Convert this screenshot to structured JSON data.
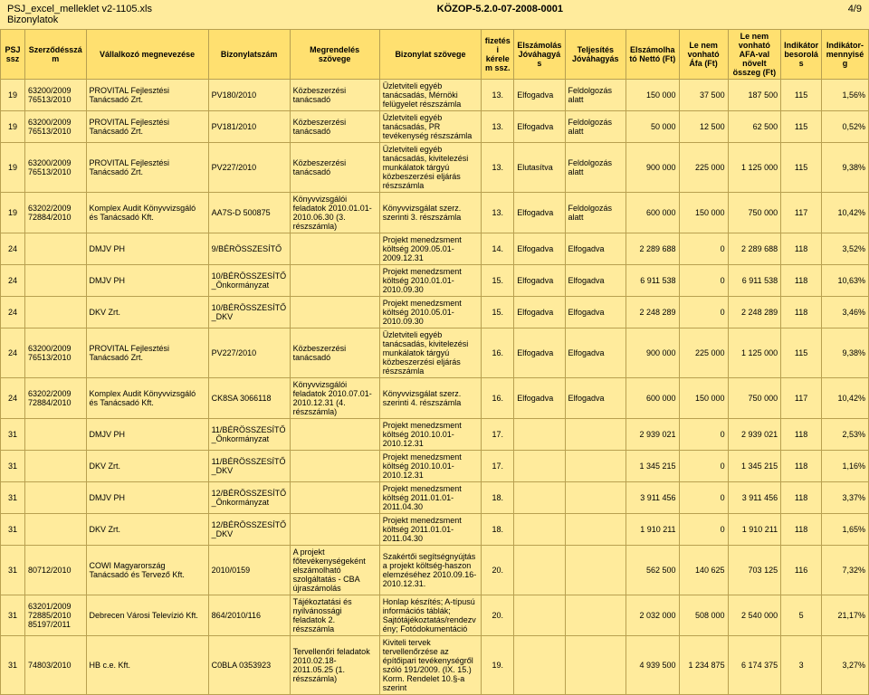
{
  "header": {
    "file": "PSJ_excel_melleklet v2-1105.xls",
    "sub": "Bizonylatok",
    "docnum": "KÖZOP-5.2.0-07-2008-0001",
    "page": "4/9"
  },
  "cols": [
    "PSJ ssz",
    "Szerződésszám",
    "Vállalkozó megnevezése",
    "Bizonylatszám",
    "Megrendelés szövege",
    "Bizonylat szövege",
    "fizetési kérelem ssz.",
    "Elszámolás Jóváhagyás",
    "Teljesítés Jóváhagyás",
    "Elszámolható Nettó (Ft)",
    "Le nem vonható Áfa (Ft)",
    "Le nem vonható AFA-val növelt összeg (Ft)",
    "Indikátor besorolás",
    "Indikátor-mennyiség"
  ],
  "widths": [
    24,
    60,
    120,
    80,
    88,
    100,
    32,
    50,
    60,
    52,
    48,
    52,
    40,
    46
  ],
  "rows": [
    [
      "19",
      "63200/2009 76513/2010",
      "PROVITAL Fejlesztési Tanácsadó Zrt.",
      "PV180/2010",
      "Közbeszerzési tanácsadó",
      "Üzletviteli egyéb tanácsadás, Mérnöki felügyelet részszámla",
      "13.",
      "Elfogadva",
      "Feldolgozás alatt",
      "150 000",
      "37 500",
      "187 500",
      "115",
      "1,56%"
    ],
    [
      "19",
      "63200/2009 76513/2010",
      "PROVITAL Fejlesztési Tanácsadó Zrt.",
      "PV181/2010",
      "Közbeszerzési tanácsadó",
      "Üzletviteli egyéb tanácsadás, PR tevékenység részszámla",
      "13.",
      "Elfogadva",
      "Feldolgozás alatt",
      "50 000",
      "12 500",
      "62 500",
      "115",
      "0,52%"
    ],
    [
      "19",
      "63200/2009 76513/2010",
      "PROVITAL Fejlesztési Tanácsadó Zrt.",
      "PV227/2010",
      "Közbeszerzési tanácsadó",
      "Üzletviteli egyéb tanácsadás, kivitelezési munkálatok tárgyú közbeszerzési eljárás részszámla",
      "13.",
      "Elutasítva",
      "Feldolgozás alatt",
      "900 000",
      "225 000",
      "1 125 000",
      "115",
      "9,38%"
    ],
    [
      "19",
      "63202/2009 72884/2010",
      "Komplex Audit Könyvvizsgáló és Tanácsadó Kft.",
      "AA7S-D 500875",
      "Könyvvizsgálói feladatok 2010.01.01-2010.06.30 (3. részszámla)",
      "Könyvvizsgálat szerz. szerinti 3. részszámla",
      "13.",
      "Elfogadva",
      "Feldolgozás alatt",
      "600 000",
      "150 000",
      "750 000",
      "117",
      "10,42%"
    ],
    [
      "24",
      "",
      "DMJV PH",
      "9/BÉRÖSSZESÍTŐ",
      "",
      "Projekt menedzsment költség 2009.05.01-2009.12.31",
      "14.",
      "Elfogadva",
      "Elfogadva",
      "2 289 688",
      "0",
      "2 289 688",
      "118",
      "3,52%"
    ],
    [
      "24",
      "",
      "DMJV PH",
      "10/BÉRÖSSZESÍTŐ_Önkormányzat",
      "",
      "Projekt menedzsment költség 2010.01.01-2010.09.30",
      "15.",
      "Elfogadva",
      "Elfogadva",
      "6 911 538",
      "0",
      "6 911 538",
      "118",
      "10,63%"
    ],
    [
      "24",
      "",
      "DKV Zrt.",
      "10/BÉRÖSSZESÍTŐ_DKV",
      "",
      "Projekt menedzsment költség 2010.05.01-2010.09.30",
      "15.",
      "Elfogadva",
      "Elfogadva",
      "2 248 289",
      "0",
      "2 248 289",
      "118",
      "3,46%"
    ],
    [
      "24",
      "63200/2009 76513/2010",
      "PROVITAL Fejlesztési Tanácsadó Zrt.",
      "PV227/2010",
      "Közbeszerzési tanácsadó",
      "Üzletviteli egyéb tanácsadás, kivitelezési munkálatok tárgyú közbeszerzési eljárás részszámla",
      "16.",
      "Elfogadva",
      "Elfogadva",
      "900 000",
      "225 000",
      "1 125 000",
      "115",
      "9,38%"
    ],
    [
      "24",
      "63202/2009 72884/2010",
      "Komplex Audit Könyvvizsgáló és Tanácsadó Kft.",
      "CK8SA 3066118",
      "Könyvvizsgálói feladatok 2010.07.01-2010.12.31 (4. részszámla)",
      "Könyvvizsgálat szerz. szerinti 4. részszámla",
      "16.",
      "Elfogadva",
      "Elfogadva",
      "600 000",
      "150 000",
      "750 000",
      "117",
      "10,42%"
    ],
    [
      "31",
      "",
      "DMJV PH",
      "11/BÉRÖSSZESÍTŐ_Önkormányzat",
      "",
      "Projekt menedzsment költség 2010.10.01-2010.12.31",
      "17.",
      "",
      "",
      "2 939 021",
      "0",
      "2 939 021",
      "118",
      "2,53%"
    ],
    [
      "31",
      "",
      "DKV Zrt.",
      "11/BÉRÖSSZESÍTŐ_DKV",
      "",
      "Projekt menedzsment költség 2010.10.01-2010.12.31",
      "17.",
      "",
      "",
      "1 345 215",
      "0",
      "1 345 215",
      "118",
      "1,16%"
    ],
    [
      "31",
      "",
      "DMJV PH",
      "12/BÉRÖSSZESÍTŐ_Önkormányzat",
      "",
      "Projekt menedzsment költség 2011.01.01-2011.04.30",
      "18.",
      "",
      "",
      "3 911 456",
      "0",
      "3 911 456",
      "118",
      "3,37%"
    ],
    [
      "31",
      "",
      "DKV Zrt.",
      "12/BÉRÖSSZESÍTŐ_DKV",
      "",
      "Projekt menedzsment költség 2011.01.01-2011.04.30",
      "18.",
      "",
      "",
      "1 910 211",
      "0",
      "1 910 211",
      "118",
      "1,65%"
    ],
    [
      "31",
      "80712/2010",
      "COWI Magyarország Tanácsadó és Tervező Kft.",
      "2010/0159",
      "A projekt főtevékenységeként elszámolható szolgáltatás - CBA újraszámolás",
      "Szakértői segítségnyújtás a projekt költség-haszon elemzéséhez 2010.09.16-2010.12.31.",
      "20.",
      "",
      "",
      "562 500",
      "140 625",
      "703 125",
      "116",
      "7,32%"
    ],
    [
      "31",
      "63201/2009 72885/2010 85197/2011",
      "Debrecen Városi Televízió Kft.",
      "864/2010/116",
      "Tájékoztatási és nyilvánossági feladatok 2. részszámla",
      "Honlap készítés; A-típusú információs táblák; Sajtótájékoztatás/rendezvény; Fotódokumentáció",
      "20.",
      "",
      "",
      "2 032 000",
      "508 000",
      "2 540 000",
      "5",
      "21,17%"
    ],
    [
      "31",
      "74803/2010",
      "HB c.e. Kft.",
      "C0BLA 0353923",
      "Tervellenőri feladatok 2010.02.18-2011.05.25 (1. részszámla)",
      "Kiviteli tervek tervellenőrzése az építőipari tevékenységről szóló 191/2009. (IX. 15.) Korm. Rendelet 10.§-a szerint",
      "19.",
      "",
      "",
      "4 939 500",
      "1 234 875",
      "6 174 375",
      "3",
      "3,27%"
    ]
  ]
}
